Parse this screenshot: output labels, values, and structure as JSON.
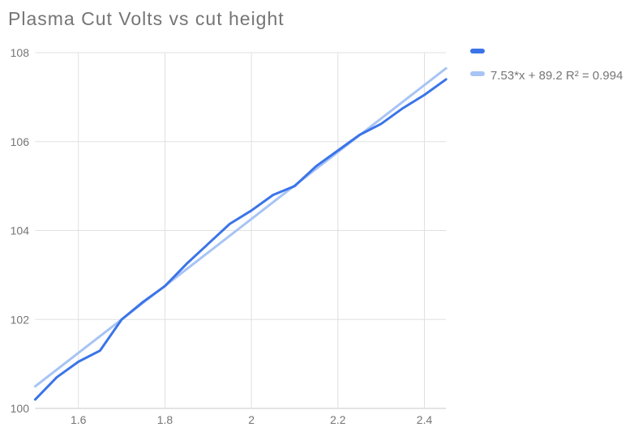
{
  "chart_data": {
    "type": "line",
    "title": "Plasma Cut Volts vs cut height",
    "xlim": [
      1.5,
      2.45
    ],
    "ylim": [
      100,
      108
    ],
    "x_ticks": [
      1.6,
      1.8,
      2,
      2.2,
      2.4
    ],
    "x_tick_labels": [
      "1.6",
      "1.8",
      "2",
      "2.2",
      "2.4"
    ],
    "y_ticks": [
      100,
      102,
      104,
      106,
      108
    ],
    "y_tick_labels": [
      "100",
      "102",
      "104",
      "106",
      "108"
    ],
    "grid": true,
    "legend_position": "right",
    "series": [
      {
        "name": "",
        "color": "#3b74e8",
        "points": [
          [
            1.5,
            100.2
          ],
          [
            1.55,
            100.7
          ],
          [
            1.6,
            101.05
          ],
          [
            1.65,
            101.3
          ],
          [
            1.7,
            102.0
          ],
          [
            1.75,
            102.4
          ],
          [
            1.8,
            102.75
          ],
          [
            1.85,
            103.25
          ],
          [
            1.9,
            103.7
          ],
          [
            1.95,
            104.15
          ],
          [
            2.0,
            104.45
          ],
          [
            2.05,
            104.8
          ],
          [
            2.1,
            105.0
          ],
          [
            2.15,
            105.45
          ],
          [
            2.2,
            105.8
          ],
          [
            2.25,
            106.15
          ],
          [
            2.3,
            106.4
          ],
          [
            2.35,
            106.75
          ],
          [
            2.4,
            107.05
          ],
          [
            2.45,
            107.4
          ]
        ]
      }
    ],
    "trendline": {
      "label": "7.53*x + 89.2 R² = 0.994",
      "color": "#a8c4f5",
      "slope": 7.53,
      "intercept": 89.2,
      "r_squared": 0.994,
      "x_start": 1.5,
      "x_end": 2.45
    },
    "colors": {
      "title_text": "#757575",
      "tick_text": "#757575",
      "gridline": "#e0e0e0",
      "baseline": "#c9c9c9"
    }
  }
}
